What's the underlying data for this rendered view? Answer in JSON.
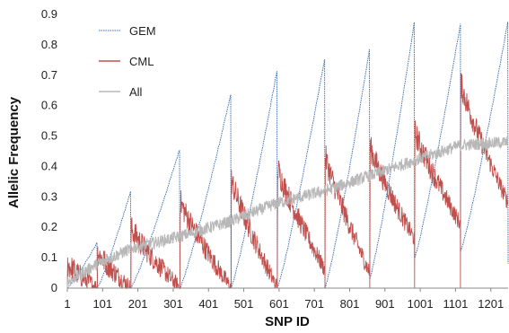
{
  "chart_data": {
    "type": "line",
    "title": "",
    "xlabel": "SNP ID",
    "ylabel": "Allelic Frequency",
    "xlim": [
      1,
      1250
    ],
    "ylim": [
      0,
      0.9
    ],
    "x_ticks": [
      1,
      101,
      201,
      301,
      401,
      501,
      601,
      701,
      801,
      901,
      1001,
      1101,
      1201
    ],
    "y_ticks": [
      "0",
      "0.1",
      "0.2",
      "0.3",
      "0.4",
      "0.5",
      "0.6",
      "0.7",
      "0.8",
      "0.9"
    ],
    "grid": false,
    "legend_position": "top-left",
    "series": [
      {
        "name": "GEM",
        "color": "#3a6fb5",
        "style": "dotted",
        "block_boundaries": [
          1,
          86,
          181,
          320,
          465,
          596,
          731,
          858,
          985,
          1115,
          1250
        ],
        "block_start_values": [
          0.0,
          0.0,
          0.0,
          0.0,
          0.0,
          0.0,
          0.0,
          0.03,
          0.1,
          0.12,
          0.08
        ],
        "block_peak_values": [
          0.15,
          0.32,
          0.46,
          0.64,
          0.72,
          0.76,
          0.79,
          0.88,
          0.87,
          0.88
        ]
      },
      {
        "name": "CML",
        "color": "#c0504d",
        "style": "solid",
        "block_boundaries": [
          1,
          86,
          181,
          320,
          465,
          596,
          731,
          858,
          985,
          1115,
          1250
        ],
        "block_start_values": [
          0.08,
          0.12,
          0.2,
          0.29,
          0.36,
          0.4,
          0.44,
          0.47,
          0.52,
          0.68
        ],
        "block_end_values": [
          0.0,
          0.0,
          0.0,
          0.0,
          0.0,
          0.06,
          0.05,
          0.16,
          0.21,
          0.28
        ]
      },
      {
        "name": "All",
        "color": "#b8b8b8",
        "style": "solid",
        "x": [
          1,
          86,
          181,
          320,
          465,
          596,
          731,
          858,
          985,
          1115,
          1250
        ],
        "y": [
          0.02,
          0.08,
          0.13,
          0.17,
          0.22,
          0.28,
          0.32,
          0.37,
          0.42,
          0.47,
          0.48
        ]
      }
    ]
  }
}
